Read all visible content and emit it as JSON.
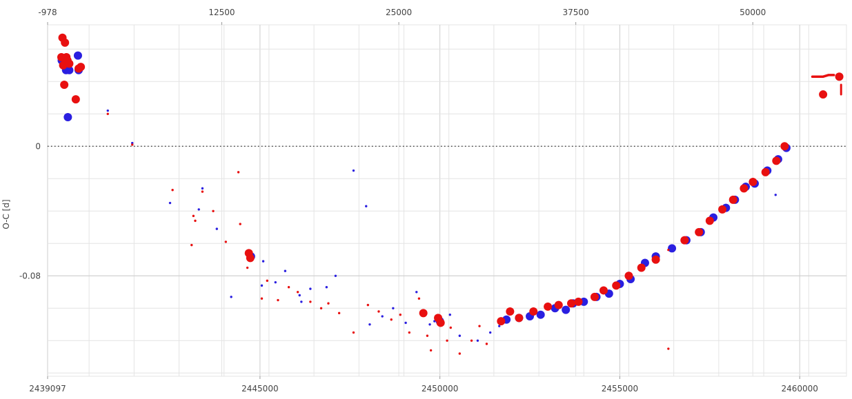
{
  "chart_data": {
    "type": "scatter",
    "title": "",
    "ylabel": "O-C [d]",
    "xlabel": "",
    "xlim": [
      2439097,
      2461300
    ],
    "ylim": [
      -0.142,
      0.075
    ],
    "epoch_axis": {
      "position": "top",
      "ticks": [
        "-978",
        "12500",
        "25000",
        "37500",
        "50000"
      ],
      "tick_jd": [
        2439097,
        2443938,
        2448858,
        2453777,
        2458696
      ]
    },
    "bottom_ticks": [
      "2439097",
      "2445000",
      "2450000",
      "2455000",
      "2460000"
    ],
    "bottom_tick_values": [
      2439097,
      2445000,
      2450000,
      2455000,
      2460000
    ],
    "y_ticks": [
      "0",
      "-0.08"
    ],
    "y_tick_values": [
      0,
      -0.08
    ],
    "grid": true,
    "zero_line": true,
    "colors": {
      "primary": "#2a1fe0",
      "secondary": "#e81010",
      "grid": "#e4e4e4",
      "major_grid": "#cccccc",
      "zero_line": "#222222"
    },
    "series": [
      {
        "color": "#2a1fe0",
        "points": [
          [
            2439490,
            0.053,
            "big"
          ],
          [
            2439610,
            0.047,
            "big"
          ],
          [
            2439660,
            0.018,
            "big"
          ],
          [
            2439940,
            0.056,
            "big"
          ],
          [
            2439700,
            0.047,
            "big"
          ],
          [
            2439960,
            0.047,
            "big"
          ],
          [
            2440770,
            0.022,
            "small"
          ],
          [
            2441450,
            0.002,
            "small"
          ],
          [
            2442500,
            -0.035,
            "small"
          ],
          [
            2443300,
            -0.039,
            "small"
          ],
          [
            2443400,
            -0.026,
            "small"
          ],
          [
            2443800,
            -0.051,
            "small"
          ],
          [
            2444200,
            -0.093,
            "small"
          ],
          [
            2444650,
            -0.067,
            "small"
          ],
          [
            2444750,
            -0.068,
            "big"
          ],
          [
            2445090,
            -0.071,
            "small"
          ],
          [
            2445050,
            -0.086,
            "small"
          ],
          [
            2445430,
            -0.084,
            "small"
          ],
          [
            2445700,
            -0.077,
            "small"
          ],
          [
            2446100,
            -0.092,
            "small"
          ],
          [
            2446150,
            -0.096,
            "small"
          ],
          [
            2446400,
            -0.088,
            "small"
          ],
          [
            2446850,
            -0.087,
            "small"
          ],
          [
            2447100,
            -0.08,
            "small"
          ],
          [
            2447600,
            -0.015,
            "small"
          ],
          [
            2447950,
            -0.037,
            "small"
          ],
          [
            2448050,
            -0.11,
            "small"
          ],
          [
            2448400,
            -0.105,
            "small"
          ],
          [
            2448700,
            -0.1,
            "small"
          ],
          [
            2449050,
            -0.109,
            "small"
          ],
          [
            2449350,
            -0.09,
            "small"
          ],
          [
            2449550,
            -0.102,
            "small"
          ],
          [
            2449720,
            -0.11,
            "small"
          ],
          [
            2449850,
            -0.108,
            "small"
          ],
          [
            2450000,
            -0.108,
            "big"
          ],
          [
            2450280,
            -0.104,
            "small"
          ],
          [
            2450550,
            -0.117,
            "small"
          ],
          [
            2451050,
            -0.12,
            "small"
          ],
          [
            2451400,
            -0.115,
            "small"
          ],
          [
            2451650,
            -0.111,
            "small"
          ],
          [
            2451850,
            -0.107,
            "big"
          ],
          [
            2452200,
            -0.106,
            "big"
          ],
          [
            2452500,
            -0.105,
            "big"
          ],
          [
            2452800,
            -0.104,
            "big"
          ],
          [
            2453200,
            -0.1,
            "big"
          ],
          [
            2453500,
            -0.101,
            "big"
          ],
          [
            2453700,
            -0.097,
            "big"
          ],
          [
            2454000,
            -0.096,
            "big"
          ],
          [
            2454350,
            -0.093,
            "big"
          ],
          [
            2454700,
            -0.091,
            "big"
          ],
          [
            2455000,
            -0.085,
            "big"
          ],
          [
            2455300,
            -0.082,
            "big"
          ],
          [
            2455700,
            -0.072,
            "big"
          ],
          [
            2456000,
            -0.068,
            "big"
          ],
          [
            2456450,
            -0.063,
            "big"
          ],
          [
            2456850,
            -0.058,
            "big"
          ],
          [
            2457250,
            -0.053,
            "big"
          ],
          [
            2457600,
            -0.044,
            "big"
          ],
          [
            2457950,
            -0.038,
            "big"
          ],
          [
            2458200,
            -0.033,
            "big"
          ],
          [
            2458500,
            -0.025,
            "big"
          ],
          [
            2458750,
            -0.023,
            "big"
          ],
          [
            2459100,
            -0.015,
            "big"
          ],
          [
            2459330,
            -0.03,
            "small"
          ],
          [
            2459400,
            -0.008,
            "big"
          ],
          [
            2459630,
            -0.001,
            "big"
          ]
        ]
      },
      {
        "color": "#e81010",
        "points": [
          [
            2439510,
            0.067,
            "big"
          ],
          [
            2439580,
            0.064,
            "big"
          ],
          [
            2439600,
            0.054,
            "big"
          ],
          [
            2439480,
            0.055,
            "big"
          ],
          [
            2439530,
            0.05,
            "big"
          ],
          [
            2439560,
            0.038,
            "big"
          ],
          [
            2439620,
            0.055,
            "big"
          ],
          [
            2439650,
            0.053,
            "big"
          ],
          [
            2439700,
            0.051,
            "big"
          ],
          [
            2439880,
            0.029,
            "big"
          ],
          [
            2439960,
            0.048,
            "big"
          ],
          [
            2440020,
            0.049,
            "big"
          ],
          [
            2440770,
            0.02,
            "small"
          ],
          [
            2441450,
            0.001,
            "small"
          ],
          [
            2442570,
            -0.027,
            "small"
          ],
          [
            2443150,
            -0.043,
            "small"
          ],
          [
            2443200,
            -0.046,
            "small"
          ],
          [
            2443100,
            -0.061,
            "small"
          ],
          [
            2443400,
            -0.028,
            "small"
          ],
          [
            2443700,
            -0.04,
            "small"
          ],
          [
            2444050,
            -0.059,
            "small"
          ],
          [
            2444400,
            -0.016,
            "small"
          ],
          [
            2444450,
            -0.048,
            "small"
          ],
          [
            2444690,
            -0.066,
            "big"
          ],
          [
            2444730,
            -0.069,
            "big"
          ],
          [
            2444650,
            -0.075,
            "small"
          ],
          [
            2445050,
            -0.094,
            "small"
          ],
          [
            2445200,
            -0.083,
            "small"
          ],
          [
            2445500,
            -0.095,
            "small"
          ],
          [
            2445800,
            -0.087,
            "small"
          ],
          [
            2446050,
            -0.09,
            "small"
          ],
          [
            2446400,
            -0.096,
            "small"
          ],
          [
            2446700,
            -0.1,
            "small"
          ],
          [
            2446900,
            -0.097,
            "small"
          ],
          [
            2447200,
            -0.103,
            "small"
          ],
          [
            2447600,
            -0.115,
            "small"
          ],
          [
            2448000,
            -0.098,
            "small"
          ],
          [
            2448300,
            -0.102,
            "small"
          ],
          [
            2448650,
            -0.107,
            "small"
          ],
          [
            2448900,
            -0.104,
            "small"
          ],
          [
            2449150,
            -0.115,
            "small"
          ],
          [
            2449420,
            -0.094,
            "small"
          ],
          [
            2449540,
            -0.103,
            "big"
          ],
          [
            2449650,
            -0.117,
            "small"
          ],
          [
            2449750,
            -0.126,
            "small"
          ],
          [
            2449950,
            -0.106,
            "big"
          ],
          [
            2450020,
            -0.109,
            "big"
          ],
          [
            2450200,
            -0.12,
            "small"
          ],
          [
            2450300,
            -0.112,
            "small"
          ],
          [
            2450550,
            -0.128,
            "small"
          ],
          [
            2450880,
            -0.12,
            "small"
          ],
          [
            2451100,
            -0.111,
            "small"
          ],
          [
            2451300,
            -0.122,
            "small"
          ],
          [
            2451700,
            -0.108,
            "big"
          ],
          [
            2451950,
            -0.102,
            "big"
          ],
          [
            2452200,
            -0.106,
            "big"
          ],
          [
            2452600,
            -0.102,
            "big"
          ],
          [
            2453000,
            -0.099,
            "big"
          ],
          [
            2453300,
            -0.098,
            "big"
          ],
          [
            2453650,
            -0.097,
            "big"
          ],
          [
            2453850,
            -0.096,
            "big"
          ],
          [
            2454300,
            -0.093,
            "big"
          ],
          [
            2454550,
            -0.089,
            "big"
          ],
          [
            2454900,
            -0.086,
            "big"
          ],
          [
            2455250,
            -0.08,
            "big"
          ],
          [
            2455600,
            -0.075,
            "big"
          ],
          [
            2456000,
            -0.07,
            "big"
          ],
          [
            2456350,
            -0.064,
            "small"
          ],
          [
            2456350,
            -0.125,
            "small"
          ],
          [
            2456800,
            -0.058,
            "big"
          ],
          [
            2457200,
            -0.053,
            "big"
          ],
          [
            2457500,
            -0.046,
            "big"
          ],
          [
            2457850,
            -0.039,
            "big"
          ],
          [
            2458150,
            -0.033,
            "big"
          ],
          [
            2458450,
            -0.026,
            "big"
          ],
          [
            2458700,
            -0.022,
            "big"
          ],
          [
            2459050,
            -0.016,
            "big"
          ],
          [
            2459350,
            -0.009,
            "big"
          ],
          [
            2459580,
            0.0,
            "big"
          ],
          [
            2460650,
            0.032,
            "big"
          ],
          [
            2461100,
            0.043,
            "big"
          ]
        ]
      }
    ],
    "extra_marks": {
      "color": "#e81010",
      "dash_points": [
        [
          2460350,
          0.043
        ],
        [
          2460500,
          0.043
        ],
        [
          2460650,
          0.043
        ],
        [
          2460800,
          0.044
        ],
        [
          2460950,
          0.044
        ]
      ],
      "vertical_dash": [
        [
          2461150,
          0.038
        ],
        [
          2461150,
          0.032
        ]
      ]
    }
  }
}
